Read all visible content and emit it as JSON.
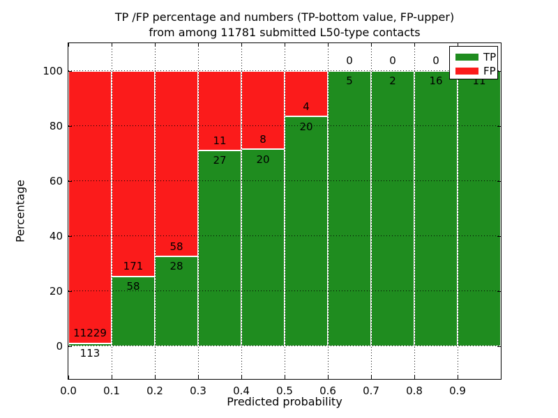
{
  "figure": {
    "title_line1": "TP /FP percentage and numbers (TP-bottom value, FP-upper)",
    "title_line2": "from among 11781 submitted L50-type contacts"
  },
  "axes": {
    "xlabel": "Predicted probability",
    "ylabel": "Percentage",
    "x_tick_labels": [
      "0.0",
      "0.1",
      "0.2",
      "0.3",
      "0.4",
      "0.5",
      "0.6",
      "0.7",
      "0.8",
      "0.9"
    ],
    "y_tick_labels": [
      "0",
      "20",
      "40",
      "60",
      "80",
      "100"
    ]
  },
  "legend": {
    "position": "upper right",
    "items": [
      {
        "label": "TP",
        "color": "#1f8c1f"
      },
      {
        "label": "FP",
        "color": "#fb1b1b"
      }
    ]
  },
  "chart_data": {
    "type": "bar",
    "stacked": true,
    "normalized_to_percent": true,
    "title": "TP /FP percentage and numbers (TP-bottom value, FP-upper) from among 11781 submitted L50-type contacts",
    "xlabel": "Predicted probability",
    "ylabel": "Percentage",
    "total_submitted": 11781,
    "xlim": [
      0.0,
      1.0
    ],
    "ylim": [
      -12,
      110
    ],
    "x_ticks": [
      0.0,
      0.1,
      0.2,
      0.3,
      0.4,
      0.5,
      0.6,
      0.7,
      0.8,
      0.9
    ],
    "y_ticks": [
      0,
      20,
      40,
      60,
      80,
      100
    ],
    "grid": true,
    "series_colors": {
      "tp": "#1f8c1f",
      "fp": "#fb1b1b"
    },
    "bins": [
      {
        "range": [
          0.0,
          0.1
        ],
        "tp": 113,
        "fp": 11229,
        "tp_pct": 1.0,
        "fp_pct": 99.0
      },
      {
        "range": [
          0.1,
          0.2
        ],
        "tp": 58,
        "fp": 171,
        "tp_pct": 25.3,
        "fp_pct": 74.7
      },
      {
        "range": [
          0.2,
          0.3
        ],
        "tp": 28,
        "fp": 58,
        "tp_pct": 32.6,
        "fp_pct": 67.4
      },
      {
        "range": [
          0.3,
          0.4
        ],
        "tp": 27,
        "fp": 11,
        "tp_pct": 71.1,
        "fp_pct": 28.9
      },
      {
        "range": [
          0.4,
          0.5
        ],
        "tp": 20,
        "fp": 8,
        "tp_pct": 71.4,
        "fp_pct": 28.6
      },
      {
        "range": [
          0.5,
          0.6
        ],
        "tp": 20,
        "fp": 4,
        "tp_pct": 83.3,
        "fp_pct": 16.7
      },
      {
        "range": [
          0.6,
          0.7
        ],
        "tp": 5,
        "fp": 0,
        "tp_pct": 100.0,
        "fp_pct": 0.0
      },
      {
        "range": [
          0.7,
          0.8
        ],
        "tp": 2,
        "fp": 0,
        "tp_pct": 100.0,
        "fp_pct": 0.0
      },
      {
        "range": [
          0.8,
          0.9
        ],
        "tp": 16,
        "fp": 0,
        "tp_pct": 100.0,
        "fp_pct": 0.0
      },
      {
        "range": [
          0.9,
          1.0
        ],
        "tp": 11,
        "fp": 0,
        "tp_pct": 100.0,
        "fp_pct": 0.0
      }
    ]
  }
}
